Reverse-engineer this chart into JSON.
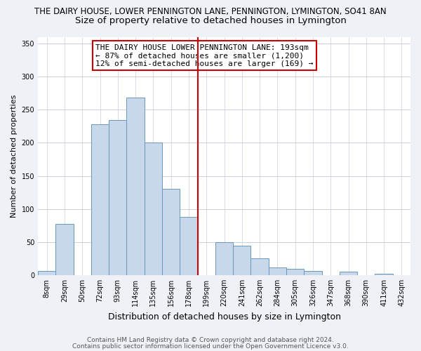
{
  "title": "THE DAIRY HOUSE, LOWER PENNINGTON LANE, PENNINGTON, LYMINGTON, SO41 8AN",
  "subtitle": "Size of property relative to detached houses in Lymington",
  "xlabel": "Distribution of detached houses by size in Lymington",
  "ylabel": "Number of detached properties",
  "bin_labels": [
    "8sqm",
    "29sqm",
    "50sqm",
    "72sqm",
    "93sqm",
    "114sqm",
    "135sqm",
    "156sqm",
    "178sqm",
    "199sqm",
    "220sqm",
    "241sqm",
    "262sqm",
    "284sqm",
    "305sqm",
    "326sqm",
    "347sqm",
    "368sqm",
    "390sqm",
    "411sqm",
    "432sqm"
  ],
  "bar_heights": [
    6,
    77,
    0,
    228,
    234,
    268,
    200,
    130,
    88,
    0,
    50,
    44,
    25,
    12,
    9,
    6,
    0,
    5,
    0,
    2,
    0
  ],
  "bar_color": "#c8d8ea",
  "bar_edge_color": "#6699bb",
  "vline_color": "#cc0000",
  "annotation_title": "THE DAIRY HOUSE LOWER PENNINGTON LANE: 193sqm",
  "annotation_line1": "← 87% of detached houses are smaller (1,200)",
  "annotation_line2": "12% of semi-detached houses are larger (169) →",
  "annotation_box_color": "white",
  "annotation_box_edge": "#cc0000",
  "ylim": [
    0,
    360
  ],
  "yticks": [
    0,
    50,
    100,
    150,
    200,
    250,
    300,
    350
  ],
  "footnote1": "Contains HM Land Registry data © Crown copyright and database right 2024.",
  "footnote2": "Contains public sector information licensed under the Open Government Licence v3.0.",
  "bg_color": "#eef2f7",
  "plot_bg_color": "white",
  "grid_color": "#c8d0dc",
  "title_fontsize": 8.5,
  "subtitle_fontsize": 9.5,
  "xlabel_fontsize": 9,
  "ylabel_fontsize": 8,
  "tick_fontsize": 7,
  "annot_title_fontsize": 8,
  "annot_body_fontsize": 8,
  "footnote_fontsize": 6.5
}
